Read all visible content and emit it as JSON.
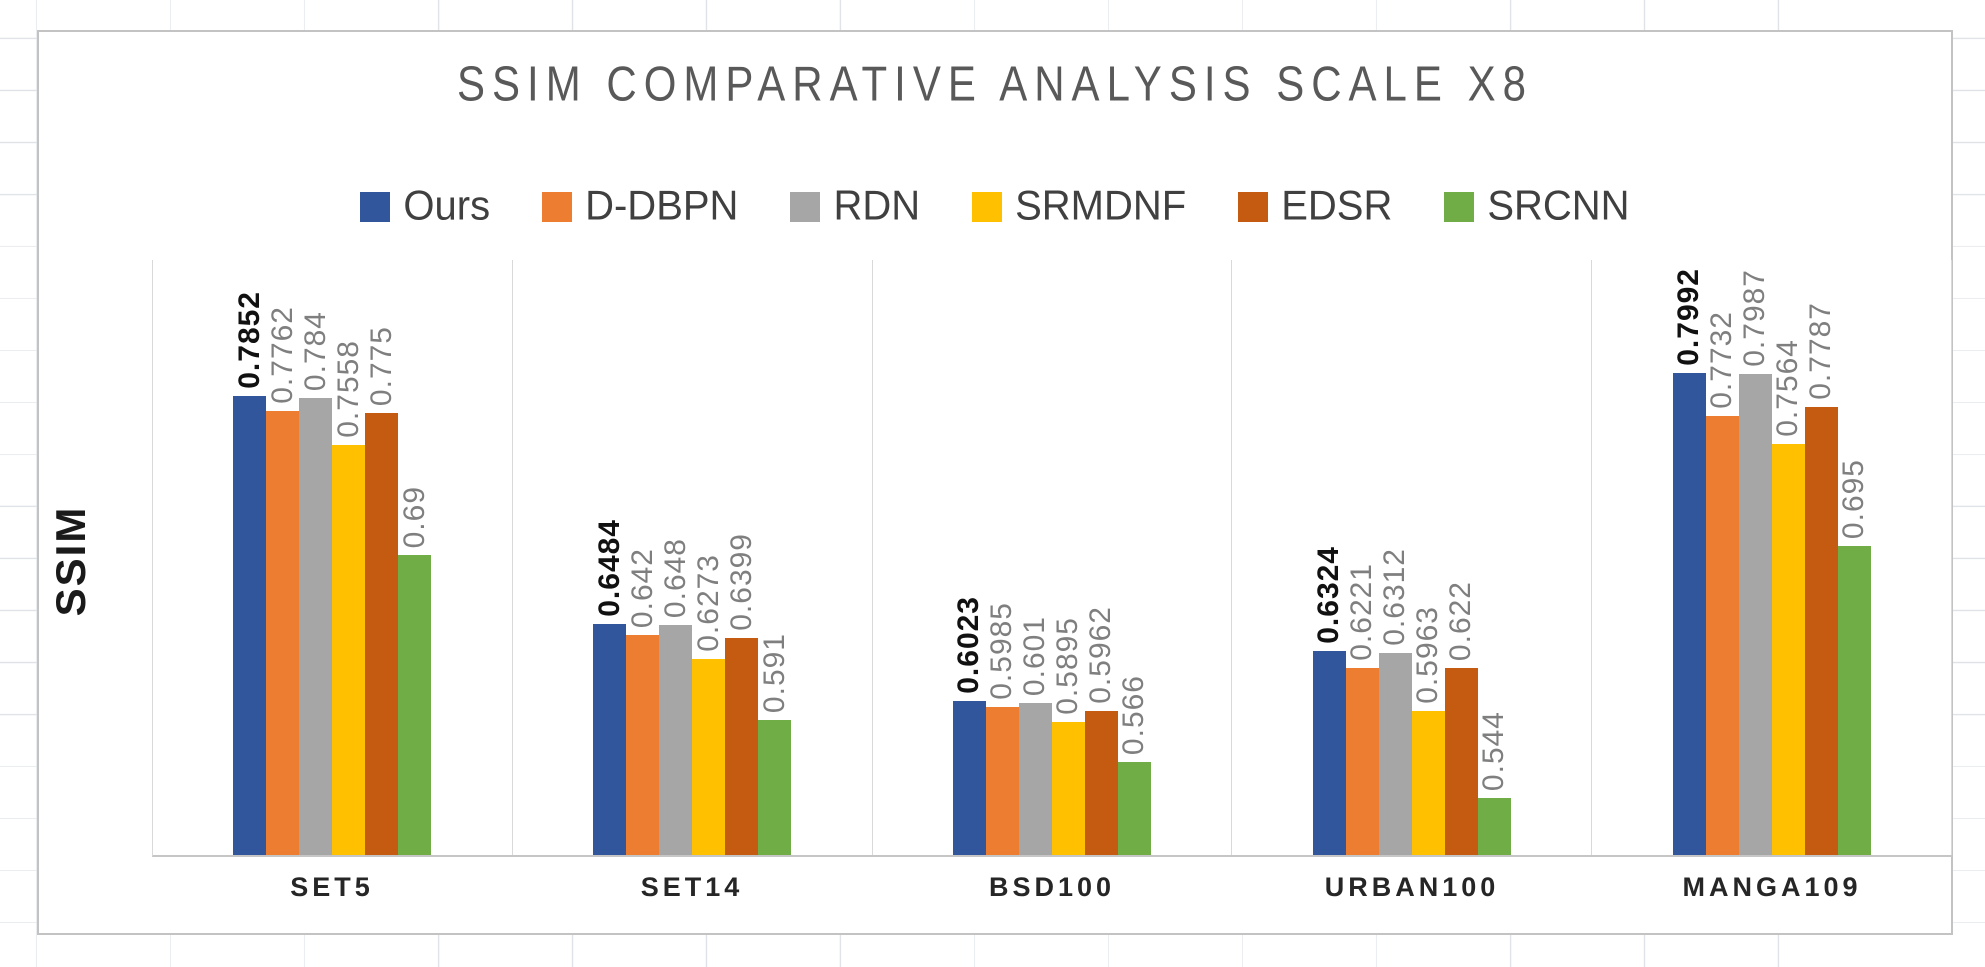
{
  "chart_data": {
    "type": "bar",
    "title": "SSIM COMPARATIVE ANALYSIS SCALE X8",
    "xlabel": "",
    "ylabel": "SSIM",
    "categories": [
      "SET5",
      "SET14",
      "BSD100",
      "URBAN100",
      "MANGA109"
    ],
    "series": [
      {
        "name": "Ours",
        "color": "#31569B",
        "values": [
          0.7852,
          0.6484,
          0.6023,
          0.6324,
          0.7992
        ]
      },
      {
        "name": "D-DBPN",
        "color": "#ED7D31",
        "values": [
          0.7762,
          0.642,
          0.5985,
          0.6221,
          0.7732
        ]
      },
      {
        "name": "RDN",
        "color": "#A6A6A6",
        "values": [
          0.784,
          0.648,
          0.601,
          0.6312,
          0.7987
        ]
      },
      {
        "name": "SRMDNF",
        "color": "#FFC000",
        "values": [
          0.7558,
          0.6273,
          0.5895,
          0.5963,
          0.7564
        ]
      },
      {
        "name": "EDSR",
        "color": "#C55A11",
        "values": [
          0.775,
          0.6399,
          0.5962,
          0.622,
          0.7787
        ]
      },
      {
        "name": "SRCNN",
        "color": "#70AD47",
        "values": [
          0.69,
          0.591,
          0.566,
          0.544,
          0.695
        ]
      }
    ],
    "value_labels": true,
    "emphasized_series": "Ours",
    "ylim": [
      0.51,
      0.868
    ],
    "y_axis_ticks_visible": false,
    "grid": false,
    "legend_position": "top",
    "category_separators": true
  }
}
